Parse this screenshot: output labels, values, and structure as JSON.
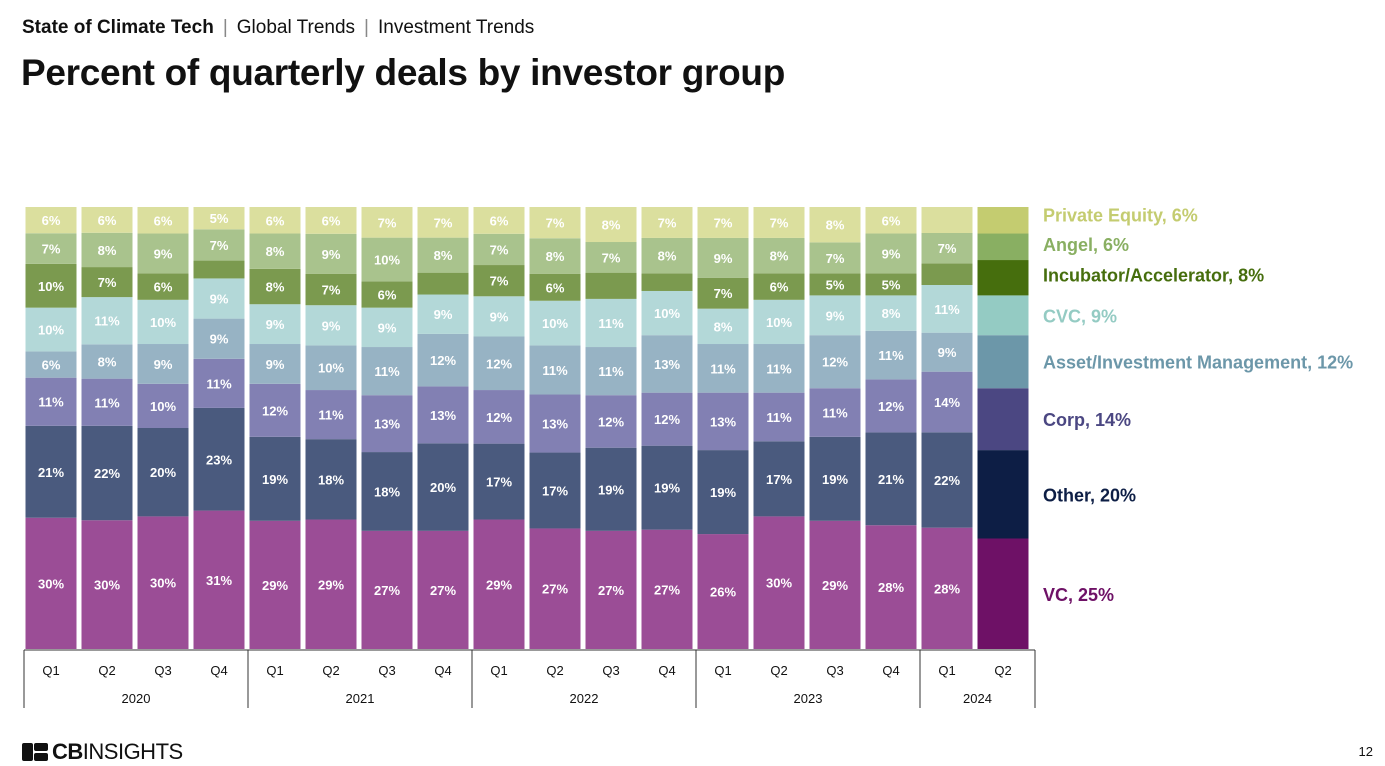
{
  "header": {
    "breadcrumb": [
      "State of Climate Tech",
      "Global Trends",
      "Investment Trends"
    ],
    "separator": "|",
    "title": "Percent of quarterly deals by investor group"
  },
  "footer": {
    "brand_bold": "CB",
    "brand_light": "INSIGHTS",
    "page_number": "12"
  },
  "chart_data": {
    "type": "bar",
    "stacked": true,
    "normalized_percent": true,
    "x": [
      "Q1",
      "Q2",
      "Q3",
      "Q4",
      "Q1",
      "Q2",
      "Q3",
      "Q4",
      "Q1",
      "Q2",
      "Q3",
      "Q4",
      "Q1",
      "Q2",
      "Q3",
      "Q4",
      "Q1",
      "Q2"
    ],
    "years": [
      {
        "label": "2020",
        "count": 4
      },
      {
        "label": "2021",
        "count": 4
      },
      {
        "label": "2022",
        "count": 4
      },
      {
        "label": "2023",
        "count": 4
      },
      {
        "label": "2024",
        "count": 2
      }
    ],
    "ylim": [
      0,
      100
    ],
    "series": [
      {
        "name": "VC",
        "color": "#9b4d96",
        "legend_color": "#6e1166",
        "values": [
          30,
          30,
          30,
          31,
          29,
          29,
          27,
          27,
          29,
          27,
          27,
          27,
          26,
          30,
          29,
          28,
          28,
          25
        ],
        "labels": [
          "30%",
          "30%",
          "30%",
          "31%",
          "29%",
          "29%",
          "27%",
          "27%",
          "29%",
          "27%",
          "27%",
          "27%",
          "26%",
          "30%",
          "29%",
          "28%",
          "28%",
          ""
        ]
      },
      {
        "name": "Other",
        "color": "#4a5a7e",
        "legend_color": "#0d1e45",
        "values": [
          21,
          22,
          20,
          23,
          19,
          18,
          18,
          20,
          17,
          17,
          19,
          19,
          19,
          17,
          19,
          21,
          22,
          20
        ],
        "labels": [
          "21%",
          "22%",
          "20%",
          "23%",
          "19%",
          "18%",
          "18%",
          "20%",
          "17%",
          "17%",
          "19%",
          "19%",
          "19%",
          "17%",
          "19%",
          "21%",
          "22%",
          ""
        ]
      },
      {
        "name": "Corp",
        "color": "#8280b3",
        "legend_color": "#4b4782",
        "values": [
          11,
          11,
          10,
          11,
          12,
          11,
          13,
          13,
          12,
          13,
          12,
          12,
          13,
          11,
          11,
          12,
          14,
          14
        ],
        "labels": [
          "11%",
          "11%",
          "10%",
          "11%",
          "12%",
          "11%",
          "13%",
          "13%",
          "12%",
          "13%",
          "12%",
          "12%",
          "13%",
          "11%",
          "11%",
          "12%",
          "14%",
          ""
        ]
      },
      {
        "name": "Asset/Investment Management",
        "color": "#97b3c4",
        "legend_color": "#6c97a9",
        "values": [
          6,
          8,
          9,
          9,
          9,
          10,
          11,
          12,
          12,
          11,
          11,
          13,
          11,
          11,
          12,
          11,
          9,
          12
        ],
        "labels": [
          "6%",
          "8%",
          "9%",
          "9%",
          "9%",
          "10%",
          "11%",
          "12%",
          "12%",
          "11%",
          "11%",
          "13%",
          "11%",
          "11%",
          "12%",
          "11%",
          "9%",
          ""
        ]
      },
      {
        "name": "CVC",
        "color": "#b3d8d8",
        "legend_color": "#94cbc3",
        "values": [
          10,
          11,
          10,
          9,
          9,
          9,
          9,
          9,
          9,
          10,
          11,
          10,
          8,
          10,
          9,
          8,
          11,
          9
        ],
        "labels": [
          "10%",
          "11%",
          "10%",
          "9%",
          "9%",
          "9%",
          "9%",
          "9%",
          "9%",
          "10%",
          "11%",
          "10%",
          "8%",
          "10%",
          "9%",
          "8%",
          "11%",
          ""
        ]
      },
      {
        "name": "Incubator/Accelerator",
        "color": "#7b9a4f",
        "legend_color": "#466e0d",
        "values": [
          10,
          7,
          6,
          4,
          8,
          7,
          6,
          5,
          7,
          6,
          6,
          4,
          7,
          6,
          5,
          5,
          5,
          8
        ],
        "labels": [
          "10%",
          "7%",
          "6%",
          "",
          "8%",
          "7%",
          "6%",
          "",
          "7%",
          "6%",
          "",
          "",
          "7%",
          "6%",
          "5%",
          "5%",
          "",
          ""
        ]
      },
      {
        "name": "Angel",
        "color": "#a9c38d",
        "legend_color": "#89af62",
        "values": [
          7,
          8,
          9,
          7,
          8,
          9,
          10,
          8,
          7,
          8,
          7,
          8,
          9,
          8,
          7,
          9,
          7,
          6
        ],
        "labels": [
          "7%",
          "8%",
          "9%",
          "7%",
          "8%",
          "9%",
          "10%",
          "8%",
          "7%",
          "8%",
          "7%",
          "8%",
          "9%",
          "8%",
          "7%",
          "9%",
          "7%",
          ""
        ]
      },
      {
        "name": "Private Equity",
        "color": "#dbdf9e",
        "legend_color": "#c4cc70",
        "values": [
          6,
          6,
          6,
          5,
          6,
          6,
          7,
          7,
          6,
          7,
          8,
          7,
          7,
          7,
          8,
          6,
          6,
          6
        ],
        "labels": [
          "6%",
          "6%",
          "6%",
          "5%",
          "6%",
          "6%",
          "7%",
          "7%",
          "6%",
          "7%",
          "8%",
          "7%",
          "7%",
          "7%",
          "8%",
          "6%",
          "",
          ""
        ]
      }
    ],
    "legend": [
      {
        "series": "Private Equity",
        "text": "Private Equity, 6%"
      },
      {
        "series": "Angel",
        "text": "Angel, 6%"
      },
      {
        "series": "Incubator/Accelerator",
        "text": "Incubator/Accelerator, 8%"
      },
      {
        "series": "CVC",
        "text": "CVC, 9%"
      },
      {
        "series": "Asset/Investment Management",
        "text": "Asset/Investment Management, 12%"
      },
      {
        "series": "Corp",
        "text": "Corp, 14%"
      },
      {
        "series": "Other",
        "text": "Other, 20%"
      },
      {
        "series": "VC",
        "text": "VC, 25%"
      }
    ],
    "legend_placement": "right",
    "grid": false
  }
}
